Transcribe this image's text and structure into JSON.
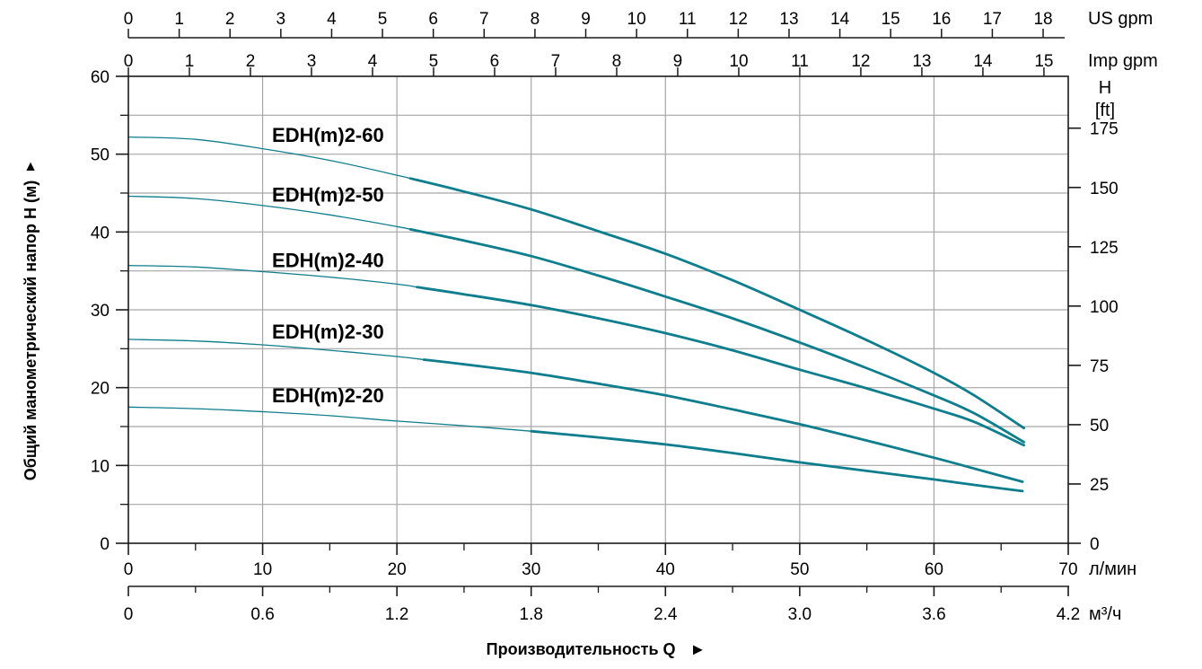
{
  "chart_data": {
    "type": "line",
    "title": "",
    "series": [
      {
        "name": "EDH(m)2-60",
        "thin_until": 21,
        "label_pos": [
          10.7,
          51.6
        ],
        "points": [
          [
            0,
            52.2
          ],
          [
            5,
            51.9
          ],
          [
            10,
            50.7
          ],
          [
            15,
            49.2
          ],
          [
            20,
            47.3
          ],
          [
            25,
            45.2
          ],
          [
            30,
            42.9
          ],
          [
            35,
            40.1
          ],
          [
            40,
            37.2
          ],
          [
            45,
            33.8
          ],
          [
            50,
            30.0
          ],
          [
            55,
            26.1
          ],
          [
            60,
            21.9
          ],
          [
            63,
            19.0
          ],
          [
            66.7,
            14.8
          ]
        ]
      },
      {
        "name": "EDH(m)2-50",
        "thin_until": 21,
        "label_pos": [
          10.7,
          43.9
        ],
        "points": [
          [
            0,
            44.6
          ],
          [
            5,
            44.3
          ],
          [
            10,
            43.4
          ],
          [
            15,
            42.2
          ],
          [
            20,
            40.7
          ],
          [
            25,
            38.9
          ],
          [
            30,
            36.9
          ],
          [
            35,
            34.4
          ],
          [
            40,
            31.7
          ],
          [
            45,
            28.9
          ],
          [
            50,
            25.8
          ],
          [
            55,
            22.5
          ],
          [
            60,
            19.0
          ],
          [
            63,
            16.7
          ],
          [
            66.7,
            13.0
          ]
        ]
      },
      {
        "name": "EDH(m)2-40",
        "thin_until": 21.5,
        "label_pos": [
          10.7,
          35.5
        ],
        "points": [
          [
            0,
            35.7
          ],
          [
            5,
            35.5
          ],
          [
            10,
            34.9
          ],
          [
            15,
            34.2
          ],
          [
            20,
            33.3
          ],
          [
            25,
            32.0
          ],
          [
            30,
            30.6
          ],
          [
            35,
            28.9
          ],
          [
            40,
            27.0
          ],
          [
            45,
            24.8
          ],
          [
            50,
            22.3
          ],
          [
            55,
            19.9
          ],
          [
            60,
            17.3
          ],
          [
            63,
            15.6
          ],
          [
            66.7,
            12.6
          ]
        ]
      },
      {
        "name": "EDH(m)2-30",
        "thin_until": 22,
        "label_pos": [
          10.7,
          26.3
        ],
        "points": [
          [
            0,
            26.2
          ],
          [
            5,
            26.0
          ],
          [
            10,
            25.5
          ],
          [
            15,
            24.8
          ],
          [
            20,
            24.0
          ],
          [
            25,
            23.0
          ],
          [
            30,
            21.9
          ],
          [
            35,
            20.5
          ],
          [
            40,
            19.0
          ],
          [
            45,
            17.2
          ],
          [
            50,
            15.3
          ],
          [
            55,
            13.2
          ],
          [
            60,
            11.0
          ],
          [
            63,
            9.6
          ],
          [
            66.6,
            7.9
          ]
        ]
      },
      {
        "name": "EDH(m)2-20",
        "thin_until": 30,
        "label_pos": [
          10.7,
          18.1
        ],
        "points": [
          [
            0,
            17.5
          ],
          [
            5,
            17.3
          ],
          [
            10,
            16.9
          ],
          [
            15,
            16.4
          ],
          [
            20,
            15.7
          ],
          [
            25,
            15.1
          ],
          [
            30,
            14.4
          ],
          [
            35,
            13.6
          ],
          [
            40,
            12.7
          ],
          [
            45,
            11.6
          ],
          [
            50,
            10.4
          ],
          [
            55,
            9.3
          ],
          [
            60,
            8.2
          ],
          [
            63,
            7.5
          ],
          [
            66.6,
            6.7
          ]
        ]
      }
    ],
    "axes": {
      "x_top_us": {
        "label": "US gpm",
        "ticks": [
          0,
          1,
          2,
          3,
          4,
          5,
          6,
          7,
          8,
          9,
          10,
          11,
          12,
          13,
          14,
          15,
          16,
          17,
          18
        ],
        "to_lmin": 3.785
      },
      "x_top_imp": {
        "label": "Imp gpm",
        "ticks": [
          0,
          1,
          2,
          3,
          4,
          5,
          6,
          7,
          8,
          9,
          10,
          11,
          12,
          13,
          14,
          15
        ],
        "to_lmin": 4.546
      },
      "y_left": {
        "label": "Общий манометрический напор H (м)",
        "arrow": "▲",
        "ticks": [
          0,
          10,
          20,
          30,
          40,
          50,
          60
        ],
        "minor_step": 5,
        "range": [
          0,
          60
        ]
      },
      "y_right": {
        "label_line1": "H",
        "label_line2": "[ft]",
        "ticks": [
          0,
          25,
          50,
          75,
          100,
          125,
          150,
          175
        ],
        "to_m": 0.3048
      },
      "x_bottom_lmin": {
        "label": "л/мин",
        "ticks": [
          0,
          10,
          20,
          30,
          40,
          50,
          60,
          70
        ],
        "minor_step": 5,
        "range": [
          0,
          70
        ]
      },
      "x_bottom_m3h": {
        "label": "м³/ч",
        "tick_labels": [
          "0",
          "0.6",
          "1.2",
          "1.8",
          "2.4",
          "3.0",
          "3.6",
          "4.2"
        ],
        "tick_values": [
          0,
          0.6,
          1.2,
          1.8,
          2.4,
          3.0,
          3.6,
          4.2
        ],
        "minor_step": 0.3,
        "to_lmin": 16.6667
      },
      "x_bottom_title": "Производительность Q",
      "x_bottom_title_arrow": "►"
    },
    "grid": {
      "x_step_lmin": 10,
      "y_step_m": 5,
      "grid_on": true
    },
    "legend_position": "labels-on-curves",
    "colors": {
      "curve": "#0E7D8D",
      "grid": "#A6A6A6",
      "axis": "#1A1A1A",
      "text": "#000000",
      "background": "#FFFFFF"
    }
  }
}
